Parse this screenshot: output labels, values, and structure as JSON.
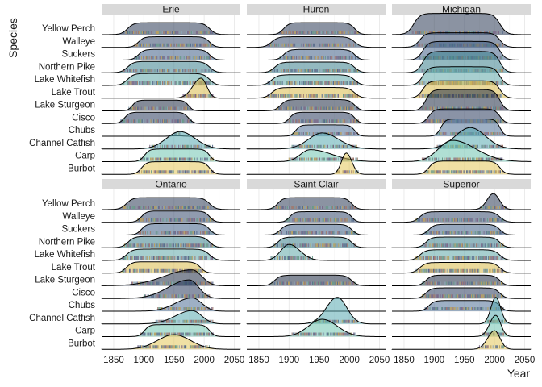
{
  "chart_data": {
    "type": "ridgeline",
    "xlabel": "Year",
    "ylabel": "Species",
    "xlim": [
      1830,
      2060
    ],
    "x_ticks": [
      1850,
      1900,
      1950,
      2000,
      2050
    ],
    "species": [
      "Yellow Perch",
      "Walleye",
      "Suckers",
      "Northern Pike",
      "Lake Whitefish",
      "Lake Trout",
      "Lake Sturgeon",
      "Cisco",
      "Chubs",
      "Channel Catfish",
      "Carp",
      "Burbot"
    ],
    "species_colors": {
      "Yellow Perch": "#2b3a55",
      "Walleye": "#34496b",
      "Suckers": "#3f5f86",
      "Northern Pike": "#3a7f8c",
      "Lake Whitefish": "#5fa8a8",
      "Lake Trout": "#d9b948",
      "Lake Sturgeon": "#1f2b44",
      "Cisco": "#2a3a5c",
      "Chubs": "#4f7096",
      "Channel Catfish": "#58a9b0",
      "Carp": "#6fc4b0",
      "Burbot": "#e3c75a"
    },
    "panels": [
      {
        "name": "Erie",
        "ridges": {
          "Yellow Perch": {
            "start": 1867,
            "end": 2015,
            "peak": 1,
            "height": 0.9
          },
          "Walleye": {
            "start": 1885,
            "end": 2015,
            "peak": 1,
            "height": 0.8
          },
          "Suckers": {
            "start": 1885,
            "end": 2015,
            "peak": 1,
            "height": 0.8
          },
          "Northern Pike": {
            "start": 1867,
            "end": 2015,
            "peak": 1,
            "height": 0.85
          },
          "Lake Whitefish": {
            "start": 1867,
            "end": 2015,
            "peak": 1,
            "height": 0.9
          },
          "Lake Trout": {
            "start": 1965,
            "end": 2015,
            "peak": 1995,
            "height": 1.5
          },
          "Lake Sturgeon": {
            "start": 1875,
            "end": 1980,
            "peak": 1,
            "height": 0.8
          },
          "Cisco": {
            "start": 1862,
            "end": 1980,
            "peak": 1,
            "height": 0.85
          },
          "Chubs": {
            "start": 1950,
            "end": 1960,
            "peak": 1955,
            "height": 0.05
          },
          "Channel Catfish": {
            "start": 1910,
            "end": 2015,
            "peak": 1960,
            "height": 1.3
          },
          "Carp": {
            "start": 1895,
            "end": 2015,
            "peak": 1,
            "height": 0.95
          },
          "Burbot": {
            "start": 1890,
            "end": 2015,
            "peak": 1,
            "height": 0.95
          }
        }
      },
      {
        "name": "Huron",
        "ridges": {
          "Yellow Perch": {
            "start": 1885,
            "end": 2015,
            "peak": 1,
            "height": 0.9
          },
          "Walleye": {
            "start": 1865,
            "end": 2015,
            "peak": 1,
            "height": 0.8
          },
          "Suckers": {
            "start": 1885,
            "end": 2015,
            "peak": 1,
            "height": 0.8
          },
          "Northern Pike": {
            "start": 1870,
            "end": 2015,
            "peak": 1,
            "height": 0.8
          },
          "Lake Whitefish": {
            "start": 1865,
            "end": 2015,
            "peak": 1,
            "height": 0.8
          },
          "Lake Trout": {
            "start": 1865,
            "end": 2015,
            "peak": 1,
            "height": 0.8
          },
          "Lake Sturgeon": {
            "start": 1880,
            "end": 2015,
            "peak": 1,
            "height": 0.85
          },
          "Cisco": {
            "start": 1895,
            "end": 2015,
            "peak": 1,
            "height": 0.85
          },
          "Chubs": {
            "start": 1905,
            "end": 2015,
            "peak": 1,
            "height": 0.85
          },
          "Channel Catfish": {
            "start": 1905,
            "end": 2015,
            "peak": 1955,
            "height": 1.2
          },
          "Carp": {
            "start": 1900,
            "end": 2015,
            "peak": 1935,
            "height": 0.9
          },
          "Burbot": {
            "start": 1978,
            "end": 2015,
            "peak": 1995,
            "height": 1.6
          }
        }
      },
      {
        "name": "Michigan",
        "ridges": {
          "Yellow Perch": {
            "start": 1860,
            "end": 2015,
            "peak": 1,
            "height": 1.6
          },
          "Walleye": {
            "start": 1870,
            "end": 2015,
            "peak": 1,
            "height": 1.1
          },
          "Suckers": {
            "start": 1875,
            "end": 2015,
            "peak": 1,
            "height": 1.4
          },
          "Northern Pike": {
            "start": 1875,
            "end": 2015,
            "peak": 1,
            "height": 1.6
          },
          "Lake Whitefish": {
            "start": 1875,
            "end": 2015,
            "peak": 1,
            "height": 1.4
          },
          "Lake Trout": {
            "start": 1875,
            "end": 2015,
            "peak": 1,
            "height": 1.3
          },
          "Lake Sturgeon": {
            "start": 1880,
            "end": 2015,
            "peak": 1,
            "height": 1.6
          },
          "Cisco": {
            "start": 1885,
            "end": 2015,
            "peak": 1,
            "height": 1.1
          },
          "Chubs": {
            "start": 1905,
            "end": 2015,
            "peak": 1,
            "height": 1.3
          },
          "Channel Catfish": {
            "start": 1905,
            "end": 2015,
            "peak": 1960,
            "height": 1.6
          },
          "Carp": {
            "start": 1880,
            "end": 2015,
            "peak": 1930,
            "height": 1.6
          },
          "Burbot": {
            "start": 1885,
            "end": 2015,
            "peak": 1,
            "height": 1.0
          }
        }
      },
      {
        "name": "Ontario",
        "ridges": {
          "Yellow Perch": {
            "start": 1865,
            "end": 2015,
            "peak": 1,
            "height": 0.9
          },
          "Walleye": {
            "start": 1890,
            "end": 2015,
            "peak": 1,
            "height": 0.85
          },
          "Suckers": {
            "start": 1890,
            "end": 2015,
            "peak": 1,
            "height": 0.85
          },
          "Northern Pike": {
            "start": 1868,
            "end": 2015,
            "peak": 1,
            "height": 0.85
          },
          "Lake Whitefish": {
            "start": 1865,
            "end": 2015,
            "peak": 1,
            "height": 0.85
          },
          "Lake Trout": {
            "start": 1865,
            "end": 2000,
            "peak": 1,
            "height": 0.85
          },
          "Lake Sturgeon": {
            "start": 1880,
            "end": 2015,
            "peak": 1980,
            "height": 1.2
          },
          "Cisco": {
            "start": 1900,
            "end": 2010,
            "peak": 1975,
            "height": 1.4
          },
          "Chubs": {
            "start": 1920,
            "end": 2015,
            "peak": 1980,
            "height": 1.0
          },
          "Channel Catfish": {
            "start": 1920,
            "end": 2015,
            "peak": 1980,
            "height": 1.0
          },
          "Carp": {
            "start": 1895,
            "end": 2015,
            "peak": 1,
            "height": 0.9
          },
          "Burbot": {
            "start": 1890,
            "end": 2010,
            "peak": 1950,
            "height": 1.1
          }
        }
      },
      {
        "name": "Saint Clair",
        "ridges": {
          "Yellow Perch": {
            "start": 1875,
            "end": 2010,
            "peak": 1,
            "height": 0.9
          },
          "Walleye": {
            "start": 1895,
            "end": 2010,
            "peak": 1,
            "height": 0.8
          },
          "Suckers": {
            "start": 1880,
            "end": 2010,
            "peak": 1,
            "height": 0.8
          },
          "Northern Pike": {
            "start": 1875,
            "end": 2010,
            "peak": 1,
            "height": 0.8
          },
          "Lake Whitefish": {
            "start": 1870,
            "end": 1940,
            "peak": 1900,
            "height": 1.2
          },
          "Lake Sturgeon": {
            "start": 1870,
            "end": 2010,
            "peak": 1,
            "height": 0.8
          },
          "Channel Catfish": {
            "start": 1940,
            "end": 2015,
            "peak": 1980,
            "height": 2.0
          },
          "Carp": {
            "start": 1905,
            "end": 2010,
            "peak": 1955,
            "height": 1.3
          }
        }
      },
      {
        "name": "Superior",
        "ridges": {
          "Yellow Perch": {
            "start": 1975,
            "end": 2020,
            "peak": 1998,
            "height": 1.2
          },
          "Walleye": {
            "start": 1870,
            "end": 2015,
            "peak": 1,
            "height": 0.8
          },
          "Suckers": {
            "start": 1885,
            "end": 2015,
            "peak": 1,
            "height": 0.8
          },
          "Northern Pike": {
            "start": 1880,
            "end": 2015,
            "peak": 1,
            "height": 0.8
          },
          "Lake Whitefish": {
            "start": 1870,
            "end": 2015,
            "peak": 1,
            "height": 0.8
          },
          "Lake Trout": {
            "start": 1870,
            "end": 2015,
            "peak": 1,
            "height": 0.8
          },
          "Lake Sturgeon": {
            "start": 1880,
            "end": 2015,
            "peak": 1,
            "height": 0.8
          },
          "Cisco": {
            "start": 1880,
            "end": 2015,
            "peak": 1,
            "height": 0.8
          },
          "Chubs": {
            "start": 1885,
            "end": 2015,
            "peak": 1,
            "height": 0.8
          },
          "Channel Catfish": {
            "start": 1985,
            "end": 2020,
            "peak": 2002,
            "height": 2.0
          },
          "Carp": {
            "start": 1980,
            "end": 2020,
            "peak": 2002,
            "height": 1.6
          },
          "Burbot": {
            "start": 1975,
            "end": 2020,
            "peak": 2000,
            "height": 1.4
          }
        }
      }
    ]
  }
}
